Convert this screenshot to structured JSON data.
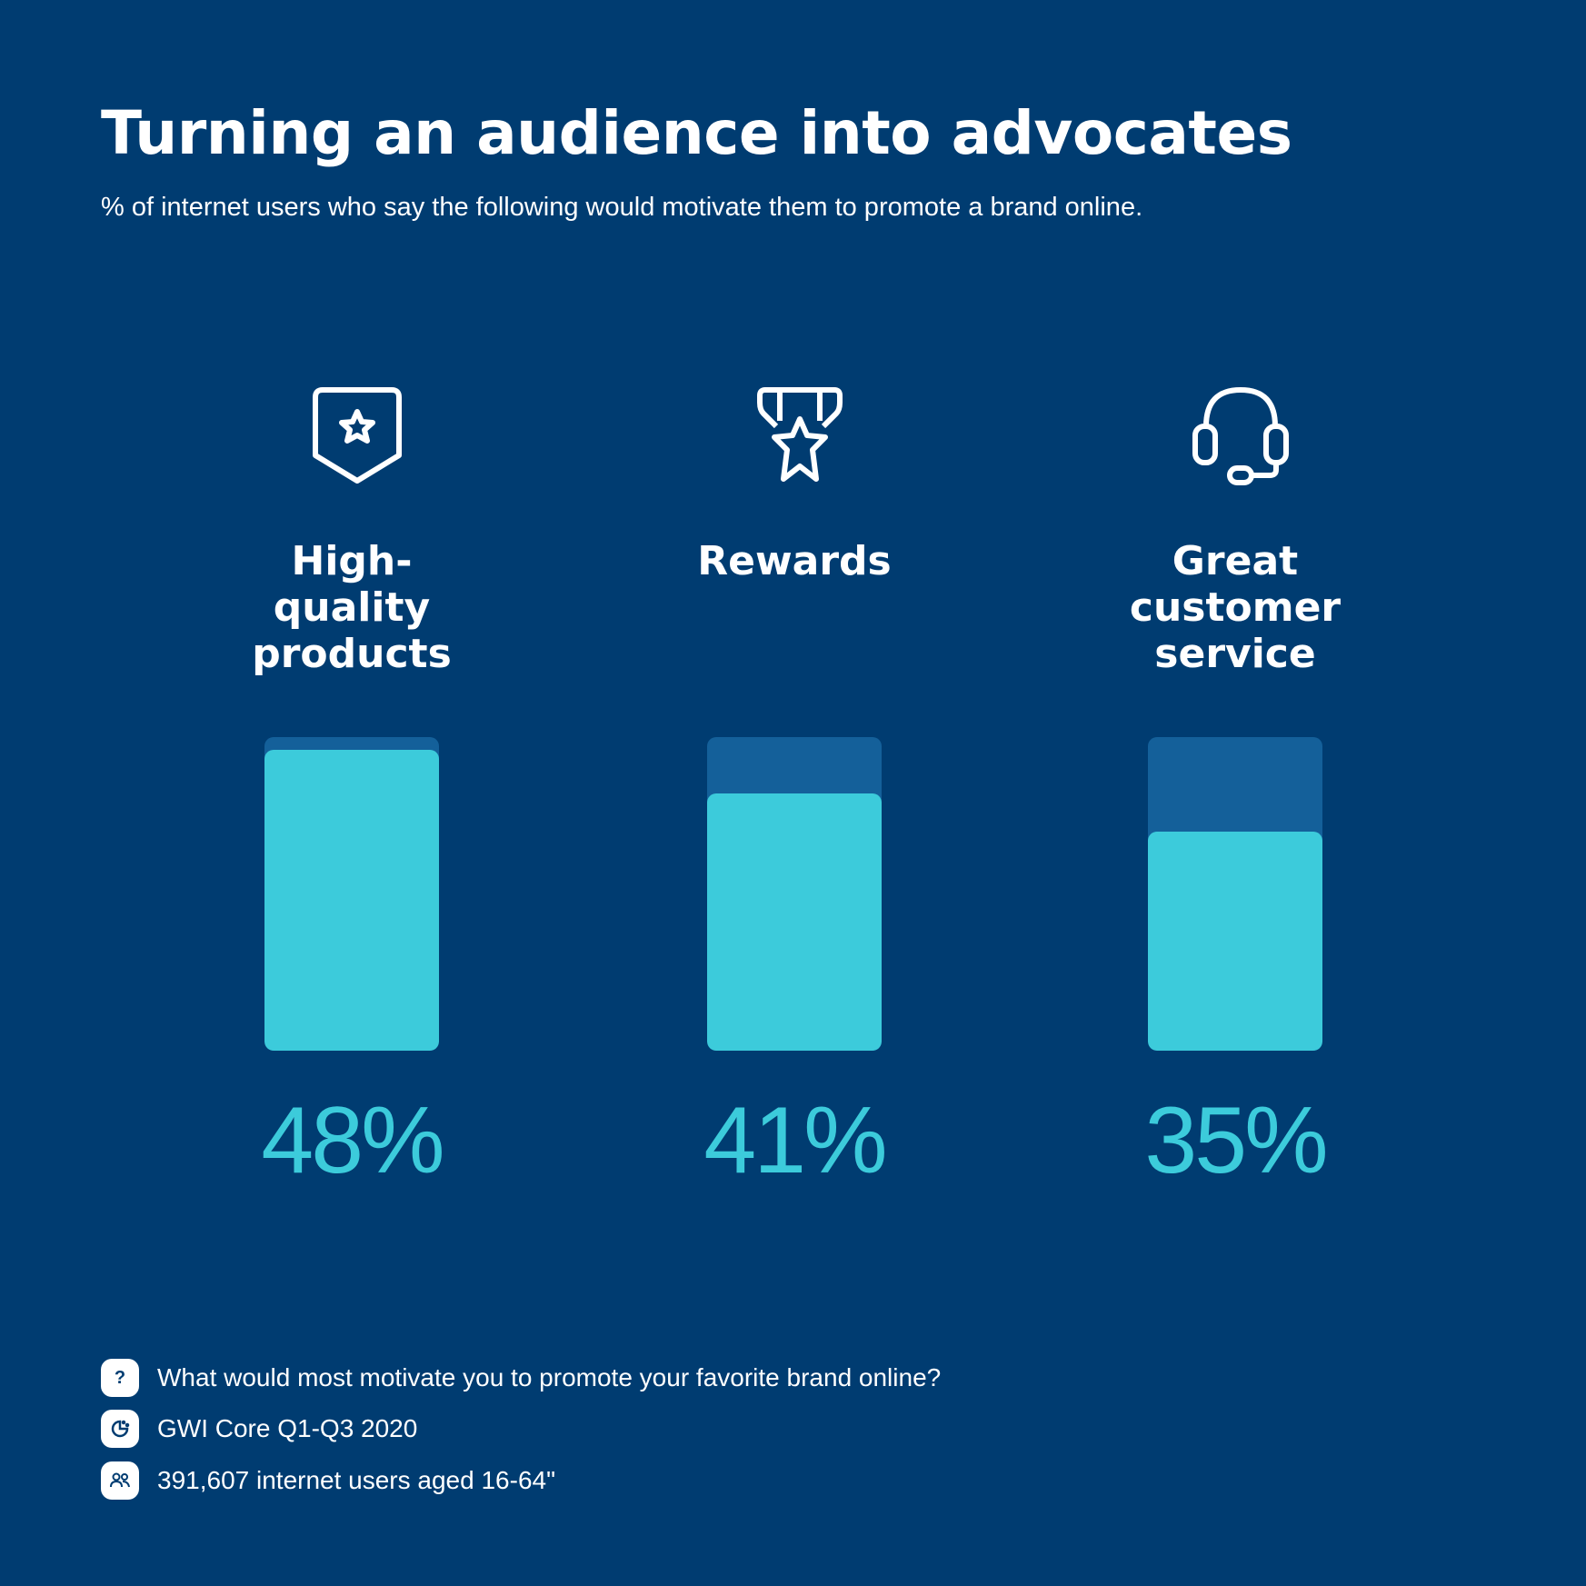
{
  "colors": {
    "background": "#003c71",
    "bar_fill": "#3ccbdb",
    "bar_track": "#14609a",
    "text": "#ffffff"
  },
  "chart_data": {
    "type": "bar",
    "title": "Turning an audience into advocates",
    "subtitle": "% of internet users who say the following would motivate them to promote a brand online.",
    "categories": [
      "High-quality products",
      "Rewards",
      "Great customer service"
    ],
    "values": [
      48,
      41,
      35
    ],
    "value_labels": [
      "48%",
      "41%",
      "35%"
    ],
    "icons": [
      "shield-star-icon",
      "medal-star-icon",
      "headset-icon"
    ],
    "ylim": [
      0,
      50
    ],
    "grid": false
  },
  "footer": [
    {
      "icon": "question-icon",
      "glyph": "?",
      "text": "What would most motivate you to promote your favorite brand online?"
    },
    {
      "icon": "data-source-icon",
      "glyph": "",
      "text": "GWI Core Q1-Q3 2020"
    },
    {
      "icon": "users-icon",
      "glyph": "",
      "text": "391,607 internet users aged 16-64\""
    }
  ]
}
